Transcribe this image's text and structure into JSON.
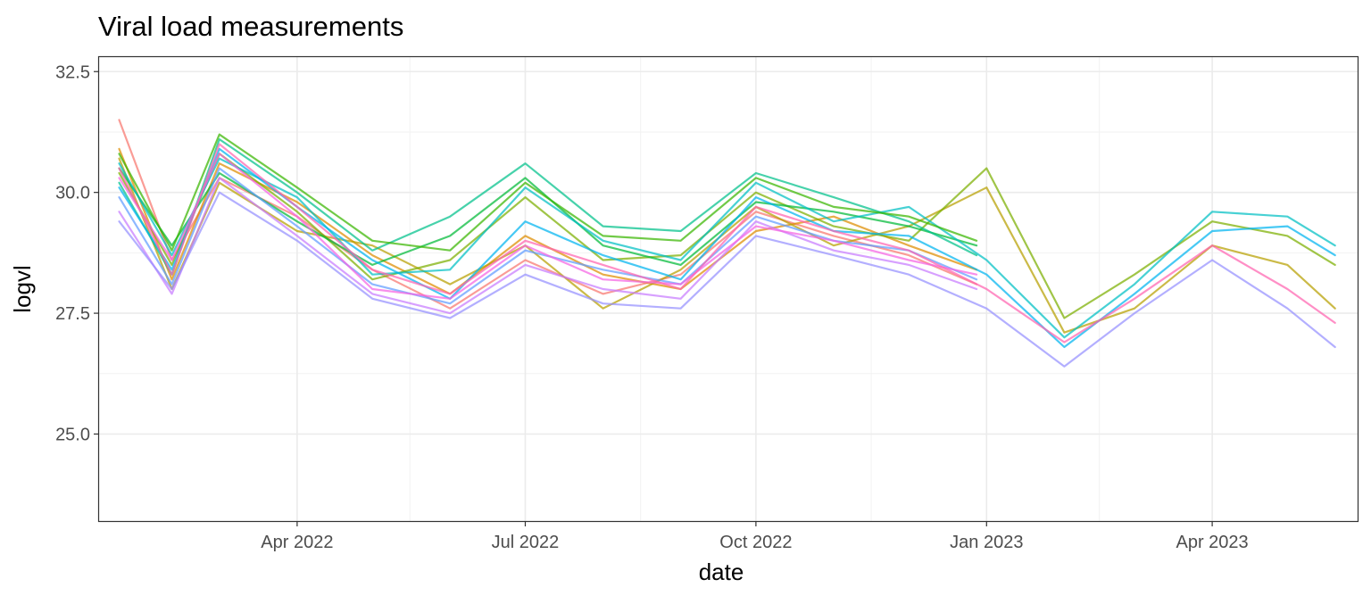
{
  "chart_data": {
    "type": "line",
    "title": "Viral load measurements",
    "xlabel": "date",
    "ylabel": "logvl",
    "x_range": [
      "2022-01-12",
      "2023-05-29"
    ],
    "ylim": [
      23.2,
      32.8
    ],
    "x_ticks": [
      {
        "date": "2022-04-01",
        "label": "Apr 2022"
      },
      {
        "date": "2022-07-01",
        "label": "Jul 2022"
      },
      {
        "date": "2022-10-01",
        "label": "Oct 2022"
      },
      {
        "date": "2023-01-01",
        "label": "Jan 2023"
      },
      {
        "date": "2023-04-01",
        "label": "Apr 2023"
      }
    ],
    "y_ticks": [
      {
        "value": 25.0,
        "label": "25.0"
      },
      {
        "value": 27.5,
        "label": "27.5"
      },
      {
        "value": 30.0,
        "label": "30.0"
      },
      {
        "value": 32.5,
        "label": "32.5"
      }
    ],
    "grid": true,
    "legend": "none",
    "colors": [
      "#F8766D",
      "#DE8C00",
      "#B79F00",
      "#7CAE00",
      "#00BA38",
      "#00C08B",
      "#00BFC4",
      "#00B4F0",
      "#619CFF",
      "#C77CFF",
      "#F564E3",
      "#FF64B0",
      "#9590FF",
      "#39B600"
    ],
    "series": [
      {
        "x": [
          "2022-01-20",
          "2022-02-10",
          "2022-03-01",
          "2022-04-01",
          "2022-05-01",
          "2022-06-01",
          "2022-07-01",
          "2022-08-01",
          "2022-09-01",
          "2022-10-01",
          "2022-11-01",
          "2022-12-01",
          "2022-12-28"
        ],
        "values": [
          31.5,
          28.6,
          30.3,
          29.5,
          28.4,
          27.6,
          28.6,
          27.9,
          28.3,
          29.6,
          29.1,
          28.7,
          28.1
        ]
      },
      {
        "x": [
          "2022-01-20",
          "2022-02-10",
          "2022-03-01",
          "2022-04-01",
          "2022-05-01",
          "2022-06-01",
          "2022-07-01",
          "2022-08-01",
          "2022-09-01",
          "2022-10-01",
          "2022-11-01",
          "2022-12-01",
          "2022-12-28"
        ],
        "values": [
          30.9,
          28.2,
          30.6,
          29.8,
          28.7,
          27.9,
          29.1,
          28.3,
          28.0,
          29.2,
          29.5,
          28.9,
          28.4
        ]
      },
      {
        "x": [
          "2022-01-20",
          "2022-02-10",
          "2022-03-01",
          "2022-04-01",
          "2022-05-01",
          "2022-06-01",
          "2022-07-01",
          "2022-08-01",
          "2022-09-01",
          "2022-10-01",
          "2022-11-01",
          "2022-12-01",
          "2023-01-01",
          "2023-02-01",
          "2023-03-01",
          "2023-04-01",
          "2023-05-01",
          "2023-05-20"
        ],
        "values": [
          30.7,
          28.0,
          30.2,
          29.2,
          28.9,
          28.1,
          28.9,
          27.6,
          28.4,
          29.7,
          28.9,
          29.3,
          30.1,
          27.1,
          27.6,
          28.9,
          28.5,
          27.6
        ]
      },
      {
        "x": [
          "2022-01-20",
          "2022-02-10",
          "2022-03-01",
          "2022-04-01",
          "2022-05-01",
          "2022-06-01",
          "2022-07-01",
          "2022-08-01",
          "2022-09-01",
          "2022-10-01",
          "2022-11-01",
          "2022-12-01",
          "2023-01-01",
          "2023-02-01",
          "2023-03-01",
          "2023-04-01",
          "2023-05-01",
          "2023-05-20"
        ],
        "values": [
          30.4,
          28.5,
          30.8,
          29.6,
          28.2,
          28.6,
          29.9,
          28.6,
          28.7,
          30.0,
          29.3,
          29.0,
          30.5,
          27.4,
          28.3,
          29.4,
          29.1,
          28.5
        ]
      },
      {
        "x": [
          "2022-01-20",
          "2022-02-10",
          "2022-03-01",
          "2022-04-01",
          "2022-05-01",
          "2022-06-01",
          "2022-07-01",
          "2022-08-01",
          "2022-09-01",
          "2022-10-01",
          "2022-11-01",
          "2022-12-01",
          "2022-12-28"
        ],
        "values": [
          30.5,
          28.9,
          30.4,
          29.4,
          28.5,
          29.1,
          30.3,
          28.9,
          28.5,
          29.8,
          29.6,
          29.3,
          28.9
        ]
      },
      {
        "x": [
          "2022-01-20",
          "2022-02-10",
          "2022-03-01",
          "2022-04-01",
          "2022-05-01",
          "2022-06-01",
          "2022-07-01",
          "2022-08-01",
          "2022-09-01",
          "2022-10-01",
          "2022-11-01",
          "2022-12-01",
          "2022-12-28"
        ],
        "values": [
          30.2,
          28.3,
          31.1,
          30.0,
          28.8,
          29.5,
          30.6,
          29.3,
          29.2,
          30.4,
          29.9,
          29.4,
          28.7
        ]
      },
      {
        "x": [
          "2022-01-20",
          "2022-02-10",
          "2022-03-01",
          "2022-04-01",
          "2022-05-01",
          "2022-06-01",
          "2022-07-01",
          "2022-08-01",
          "2022-09-01",
          "2022-10-01",
          "2022-11-01",
          "2022-12-01",
          "2023-01-01",
          "2023-02-01",
          "2023-03-01",
          "2023-04-01",
          "2023-05-01",
          "2023-05-20"
        ],
        "values": [
          30.6,
          28.7,
          30.7,
          29.9,
          28.3,
          28.4,
          30.1,
          29.0,
          28.6,
          30.2,
          29.4,
          29.7,
          28.6,
          27.0,
          28.1,
          29.6,
          29.5,
          28.9
        ]
      },
      {
        "x": [
          "2022-01-20",
          "2022-02-10",
          "2022-03-01",
          "2022-04-01",
          "2022-05-01",
          "2022-06-01",
          "2022-07-01",
          "2022-08-01",
          "2022-09-01",
          "2022-10-01",
          "2022-11-01",
          "2022-12-01",
          "2023-01-01",
          "2023-02-01",
          "2023-03-01",
          "2023-04-01",
          "2023-05-01",
          "2023-05-20"
        ],
        "values": [
          30.1,
          28.4,
          30.9,
          29.7,
          28.6,
          27.8,
          29.4,
          28.7,
          28.2,
          29.9,
          29.2,
          29.1,
          28.3,
          26.8,
          27.9,
          29.2,
          29.3,
          28.7
        ]
      },
      {
        "x": [
          "2022-01-20",
          "2022-02-10",
          "2022-03-01",
          "2022-04-01",
          "2022-05-01",
          "2022-06-01",
          "2022-07-01",
          "2022-08-01",
          "2022-09-01",
          "2022-10-01",
          "2022-11-01",
          "2022-12-01",
          "2022-12-28"
        ],
        "values": [
          29.9,
          28.1,
          30.5,
          29.3,
          28.1,
          27.7,
          28.8,
          28.4,
          28.1,
          29.5,
          29.0,
          28.8,
          28.2
        ]
      },
      {
        "x": [
          "2022-01-20",
          "2022-02-10",
          "2022-03-01",
          "2022-04-01",
          "2022-05-01",
          "2022-06-01",
          "2022-07-01",
          "2022-08-01",
          "2022-09-01",
          "2022-10-01",
          "2022-11-01",
          "2022-12-01",
          "2022-12-28"
        ],
        "values": [
          29.6,
          27.9,
          30.3,
          29.1,
          27.9,
          27.5,
          28.5,
          28.0,
          27.8,
          29.4,
          28.8,
          28.5,
          28.0
        ]
      },
      {
        "x": [
          "2022-01-20",
          "2022-02-10",
          "2022-03-01",
          "2022-04-01",
          "2022-05-01",
          "2022-06-01",
          "2022-07-01",
          "2022-08-01",
          "2022-09-01",
          "2022-10-01",
          "2022-11-01",
          "2022-12-01",
          "2022-12-28"
        ],
        "values": [
          30.3,
          28.6,
          30.8,
          29.5,
          28.0,
          27.8,
          28.9,
          28.2,
          28.1,
          29.3,
          29.0,
          28.6,
          28.3
        ]
      },
      {
        "x": [
          "2022-01-20",
          "2022-02-10",
          "2022-03-01",
          "2022-04-01",
          "2022-05-01",
          "2022-06-01",
          "2022-07-01",
          "2022-08-01",
          "2022-09-01",
          "2022-10-01",
          "2022-11-01",
          "2022-12-01",
          "2023-01-01",
          "2023-02-01",
          "2023-03-01",
          "2023-04-01",
          "2023-05-01",
          "2023-05-20"
        ],
        "values": [
          30.5,
          28.3,
          31.0,
          29.7,
          28.4,
          27.9,
          29.0,
          28.5,
          28.0,
          29.7,
          29.2,
          28.8,
          28.0,
          26.9,
          27.8,
          28.9,
          28.0,
          27.3
        ]
      },
      {
        "x": [
          "2022-01-20",
          "2022-02-10",
          "2022-03-01",
          "2022-04-01",
          "2022-05-01",
          "2022-06-01",
          "2022-07-01",
          "2022-08-01",
          "2022-09-01",
          "2022-10-01",
          "2022-11-01",
          "2022-12-01",
          "2023-01-01",
          "2023-02-01",
          "2023-03-01",
          "2023-04-01",
          "2023-05-01",
          "2023-05-20"
        ],
        "values": [
          29.4,
          28.0,
          30.0,
          29.0,
          27.8,
          27.4,
          28.3,
          27.7,
          27.6,
          29.1,
          28.7,
          28.3,
          27.6,
          26.4,
          27.5,
          28.6,
          27.6,
          26.8
        ]
      },
      {
        "x": [
          "2022-01-20",
          "2022-02-10",
          "2022-03-01",
          "2022-04-01",
          "2022-05-01",
          "2022-06-01",
          "2022-07-01",
          "2022-08-01",
          "2022-09-01",
          "2022-10-01",
          "2022-11-01",
          "2022-12-01",
          "2022-12-28"
        ],
        "values": [
          30.8,
          28.8,
          31.2,
          30.1,
          29.0,
          28.8,
          30.2,
          29.1,
          29.0,
          30.3,
          29.7,
          29.5,
          29.0
        ]
      }
    ]
  }
}
